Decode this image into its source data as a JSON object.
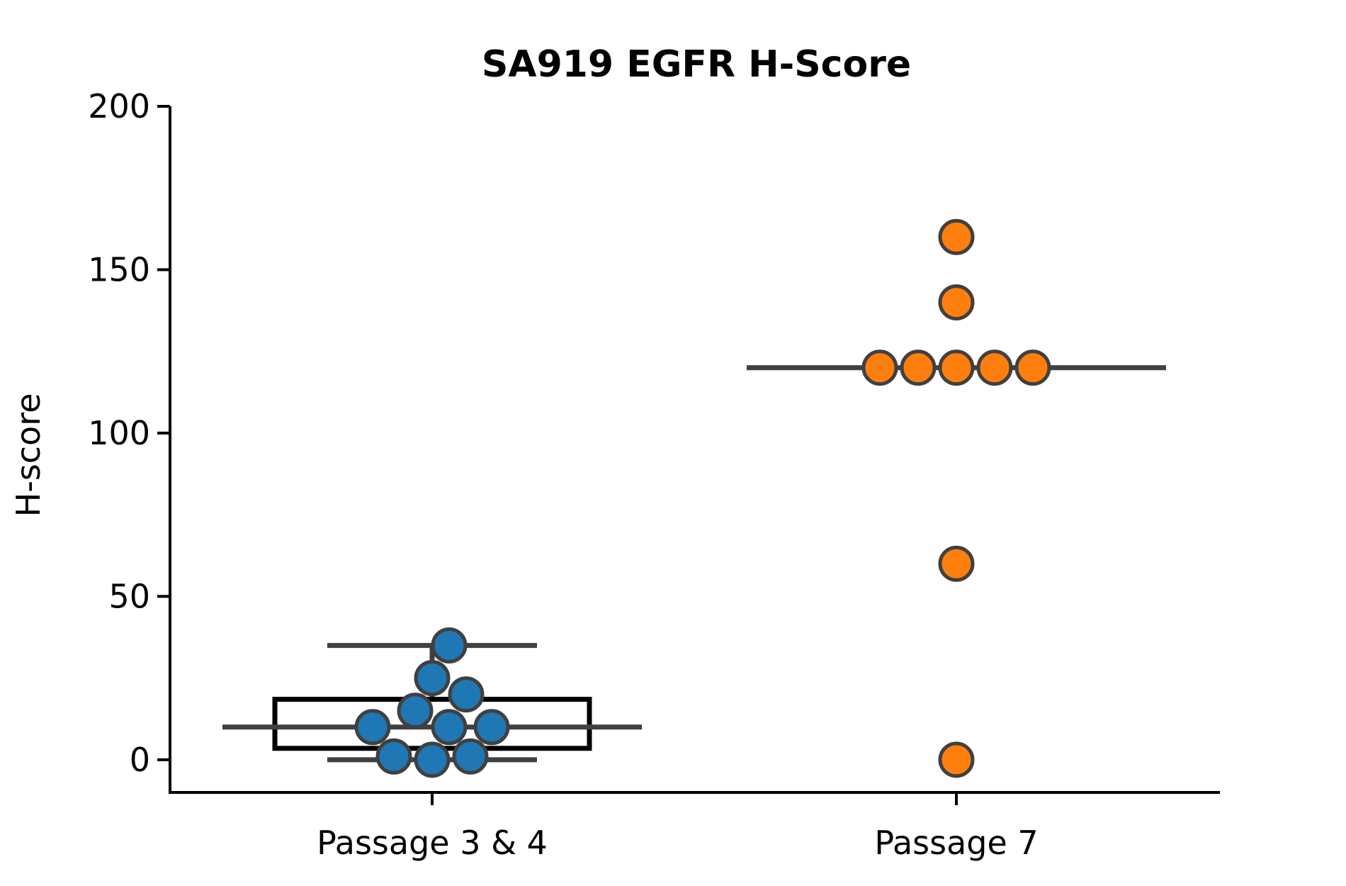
{
  "chart_data": {
    "type": "box",
    "title": "SA919 EGFR H-Score",
    "xlabel": "",
    "ylabel": "H-score",
    "ylim": [
      -10,
      200
    ],
    "yticks": [
      0,
      50,
      100,
      150,
      200
    ],
    "ytick_labels": [
      "0",
      "50",
      "100",
      "150",
      "200"
    ],
    "categories": [
      "Passage 3 & 4",
      "Passage 7"
    ],
    "grid": false,
    "colors": {
      "passage_3_4": "#1f77b4",
      "passage_7": "#ff7f0e",
      "box_edge": "#000000",
      "whisker": "#404040",
      "marker_edge": "#404040"
    },
    "groups": [
      {
        "category": "Passage 3 & 4",
        "box": {
          "q1": 3.5,
          "median": 10,
          "q3": 18.5,
          "whisker_low": 0,
          "whisker_high": 35
        },
        "points": [
          35,
          25,
          20,
          15,
          10,
          10,
          10,
          1,
          0,
          1
        ]
      },
      {
        "category": "Passage 7",
        "box": {
          "q1": 120,
          "median": 120,
          "q3": 120,
          "whisker_low": 120,
          "whisker_high": 120
        },
        "points": [
          160,
          140,
          120,
          120,
          120,
          120,
          120,
          60,
          0
        ]
      }
    ]
  }
}
